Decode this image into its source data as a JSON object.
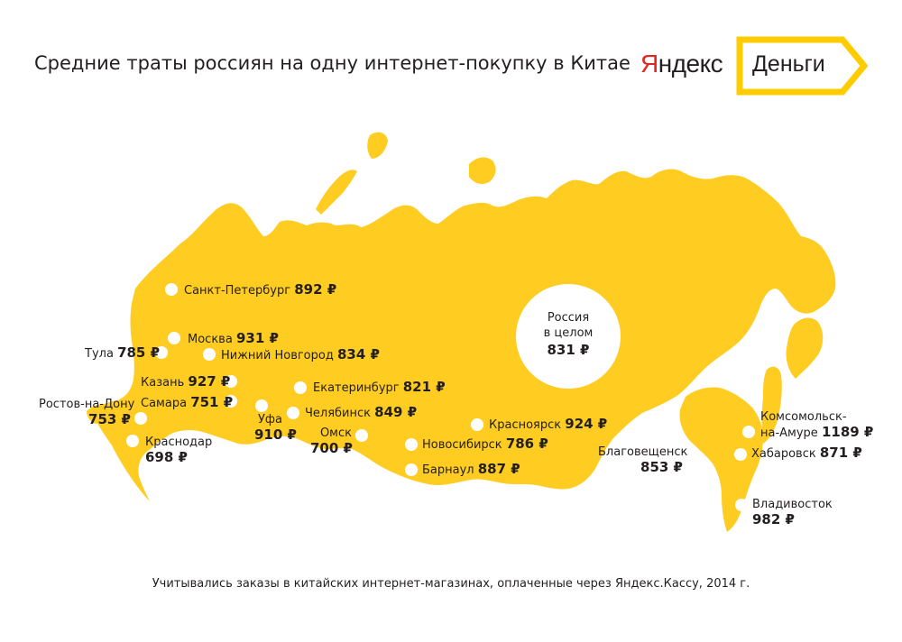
{
  "title": "Средние траты россиян на одну интернет-покупку в Китае",
  "brand": {
    "name_first": "Я",
    "name_rest": "ндекс",
    "product": "Деньги",
    "accent_color": "#ffcc00",
    "logo_red": "#e52620"
  },
  "map": {
    "fill_color": "#ffcc22",
    "russia_total": {
      "line1": "Россия",
      "line2": "в целом",
      "value": "831 ₽"
    },
    "cities": [
      {
        "name": "Санкт-Петербург",
        "value": "892 ₽"
      },
      {
        "name": "Москва",
        "value": "931 ₽"
      },
      {
        "name": "Тула",
        "value": "785 ₽"
      },
      {
        "name": "Нижний Новгород",
        "value": "834 ₽"
      },
      {
        "name": "Казань",
        "value": "927 ₽"
      },
      {
        "name": "Самара",
        "value": "751 ₽"
      },
      {
        "name": "Ростов-на-Дону",
        "value": "753 ₽"
      },
      {
        "name": "Краснодар",
        "value": "698 ₽"
      },
      {
        "name": "Уфа",
        "value": "910 ₽"
      },
      {
        "name": "Екатеринбург",
        "value": "821 ₽"
      },
      {
        "name": "Челябинск",
        "value": "849 ₽"
      },
      {
        "name": "Омск",
        "value": "700 ₽"
      },
      {
        "name": "Новосибирск",
        "value": "786 ₽"
      },
      {
        "name": "Барнаул",
        "value": "887 ₽"
      },
      {
        "name": "Красноярск",
        "value": "924 ₽"
      },
      {
        "name": "Благовещенск",
        "value": "853 ₽"
      },
      {
        "name": "Комсомольск-",
        "name2": "на-Амуре",
        "value": "1189 ₽"
      },
      {
        "name": "Хабаровск",
        "value": "871 ₽"
      },
      {
        "name": "Владивосток",
        "value": "982 ₽"
      }
    ]
  },
  "footnote": "Учитывались заказы в китайских интернет-магазинах, оплаченные через Яндекс.Кассу, 2014 г."
}
